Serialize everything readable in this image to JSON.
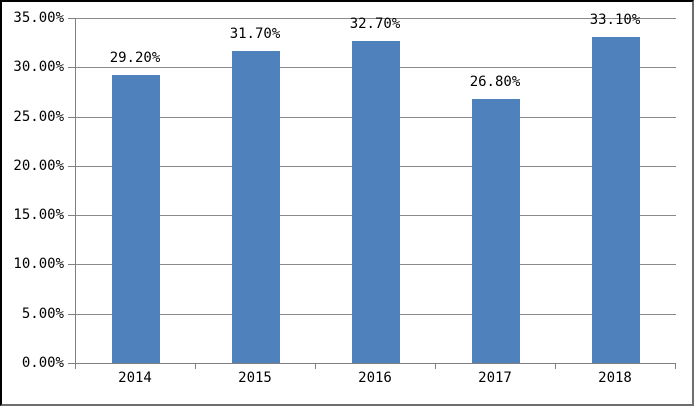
{
  "chart_data": {
    "type": "bar",
    "title": "",
    "xlabel": "",
    "ylabel": "",
    "categories": [
      "2014",
      "2015",
      "2016",
      "2017",
      "2018"
    ],
    "values": [
      29.2,
      31.7,
      32.7,
      26.8,
      33.1
    ],
    "data_labels": [
      "29.20%",
      "31.70%",
      "32.70%",
      "26.80%",
      "33.10%"
    ],
    "y_tick_labels": [
      "0.00%",
      "5.00%",
      "10.00%",
      "15.00%",
      "20.00%",
      "25.00%",
      "30.00%",
      "35.00%"
    ],
    "ylim": [
      0,
      35
    ],
    "y_step": 5,
    "grid": true,
    "legend": false,
    "colors": {
      "bar_fill": "#4f81bd",
      "gridline": "#8a8a8a",
      "axis_line": "#808080",
      "figure_border": "#000000",
      "background": "#ffffff",
      "label_text": "#000000"
    }
  }
}
